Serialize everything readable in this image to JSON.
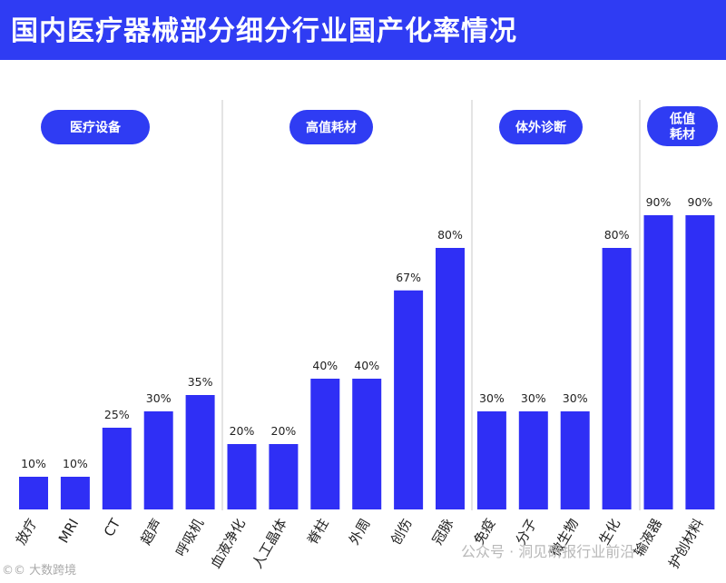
{
  "header": {
    "title": "国内医疗器械部分细分行业国产化率情况"
  },
  "colors": {
    "accent": "#2f3cf3",
    "bar": "#2f2ff5",
    "background": "#ffffff"
  },
  "watermarks": {
    "left": "©© 大数跨境",
    "right": "公众号 · 洞见研报行业前沿"
  },
  "chart_data": {
    "type": "bar",
    "title": "国内医疗器械部分细分行业国产化率情况",
    "xlabel": "",
    "ylabel": "",
    "ylim": [
      0,
      100
    ],
    "unit": "%",
    "groups": [
      {
        "name": "医疗设备",
        "categories": [
          "放疗",
          "MRI",
          "CT",
          "超声",
          "呼吸机"
        ],
        "values": [
          10,
          10,
          25,
          30,
          35
        ]
      },
      {
        "name": "高值耗材",
        "categories": [
          "血液净化",
          "人工晶体",
          "脊柱",
          "外周",
          "创伤",
          "冠脉"
        ],
        "values": [
          20,
          20,
          40,
          40,
          67,
          80
        ]
      },
      {
        "name": "体外诊断",
        "categories": [
          "免疫",
          "分子",
          "微生物",
          "生化"
        ],
        "values": [
          30,
          30,
          30,
          80
        ]
      },
      {
        "name": "低值耗材",
        "name_lines": [
          "低值",
          "耗材"
        ],
        "categories": [
          "输液器",
          "护创材料"
        ],
        "values": [
          90,
          90
        ]
      }
    ]
  }
}
